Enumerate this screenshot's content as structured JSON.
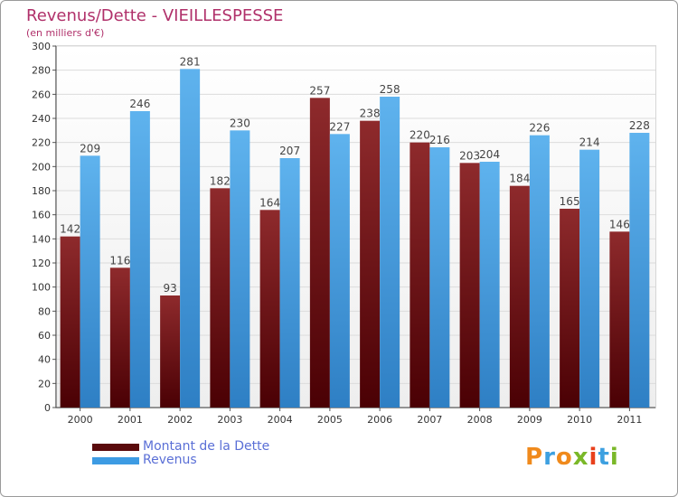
{
  "header": {
    "title": "Revenus/Dette - VIEILLESPESSE",
    "subtitle": "(en milliers d'€)"
  },
  "colors": {
    "title": "#b0306a",
    "dette": "#7a1618",
    "revenus": "#3d9be3",
    "legend_text": "#5a6fd6"
  },
  "legend": {
    "items": [
      {
        "label": "Montant de la Dette",
        "color": "#7a1618"
      },
      {
        "label": "Revenus",
        "color": "#3d9be3"
      }
    ]
  },
  "logo": {
    "text": "Proxiti"
  },
  "chart_data": {
    "type": "bar",
    "categories": [
      "2000",
      "2001",
      "2002",
      "2003",
      "2004",
      "2005",
      "2006",
      "2007",
      "2008",
      "2009",
      "2010",
      "2011"
    ],
    "series": [
      {
        "name": "Montant de la Dette",
        "values": [
          142,
          116,
          93,
          182,
          164,
          257,
          238,
          220,
          203,
          184,
          165,
          146
        ]
      },
      {
        "name": "Revenus",
        "values": [
          209,
          246,
          281,
          230,
          207,
          227,
          258,
          216,
          204,
          226,
          214,
          228
        ]
      }
    ],
    "title": "Revenus/Dette - VIEILLESPESSE",
    "subtitle": "(en milliers d'€)",
    "ylim": [
      0,
      300
    ],
    "yticks": [
      0,
      20,
      40,
      60,
      80,
      100,
      120,
      140,
      160,
      180,
      200,
      220,
      240,
      260,
      280,
      300
    ],
    "grid": true,
    "legend_position": "bottom-left"
  }
}
